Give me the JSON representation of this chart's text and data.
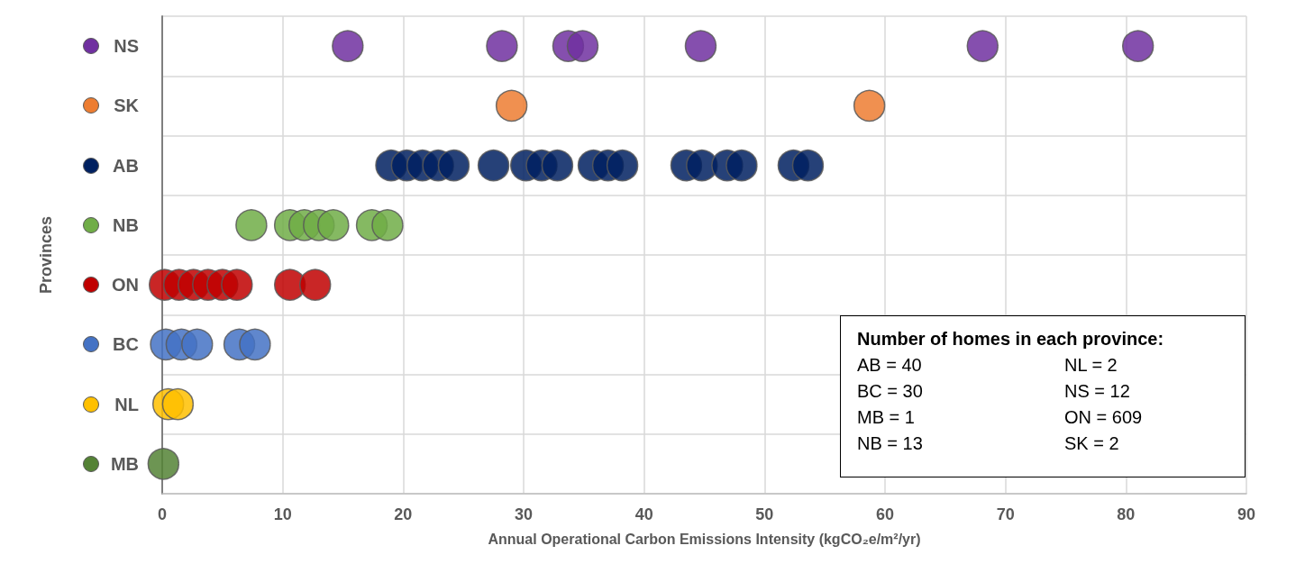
{
  "chart_data": {
    "type": "scatter",
    "orientation": "horizontal",
    "xlabel": "Annual Operational Carbon Emissions Intensity (kgCO₂e/m²/yr)",
    "ylabel": "Provinces",
    "categories": [
      "NS",
      "SK",
      "AB",
      "NB",
      "ON",
      "BC",
      "NL",
      "MB"
    ],
    "xlim": [
      0,
      90
    ],
    "xticks": [
      0,
      10,
      20,
      30,
      40,
      50,
      60,
      70,
      80,
      90
    ],
    "grid": true,
    "marker": "circle",
    "annotations": [
      "Number of homes in each province:",
      "AB = 40",
      "BC = 30",
      "MB = 1",
      "NB = 13",
      "NL = 2",
      "NS = 12",
      "ON = 609",
      "SK = 2"
    ],
    "series": [
      {
        "color": "#7030a0",
        "x": [
          "NS",
          "NS",
          "NS",
          "NS",
          "NS",
          "NS",
          "NS"
        ],
        "values": [
          15.4,
          28.2,
          33.7,
          34.9,
          44.7,
          68.1,
          81.0
        ]
      },
      {
        "color": "#ed7d31",
        "x": [
          "SK",
          "SK"
        ],
        "values": [
          29.0,
          58.7
        ]
      },
      {
        "color": "#002060",
        "x": [
          "AB",
          "AB",
          "AB",
          "AB",
          "AB",
          "AB",
          "AB",
          "AB",
          "AB",
          "AB",
          "AB",
          "AB",
          "AB",
          "AB",
          "AB",
          "AB",
          "AB",
          "AB"
        ],
        "values": [
          19.0,
          20.3,
          21.6,
          22.9,
          24.2,
          27.5,
          30.2,
          31.5,
          32.8,
          35.8,
          37.0,
          38.2,
          43.5,
          44.8,
          46.9,
          48.1,
          52.4,
          53.6
        ]
      },
      {
        "color": "#70ad47",
        "x": [
          "NB",
          "NB",
          "NB",
          "NB",
          "NB",
          "NB",
          "NB"
        ],
        "values": [
          7.4,
          10.6,
          11.8,
          13.0,
          14.2,
          17.4,
          18.7
        ]
      },
      {
        "color": "#c00000",
        "x": [
          "ON",
          "ON",
          "ON",
          "ON",
          "ON",
          "ON",
          "ON",
          "ON"
        ],
        "values": [
          0.2,
          1.4,
          2.6,
          3.8,
          5.0,
          6.2,
          10.6,
          12.7
        ]
      },
      {
        "color": "#4472c4",
        "x": [
          "BC",
          "BC",
          "BC",
          "BC",
          "BC"
        ],
        "values": [
          0.3,
          1.6,
          2.9,
          6.4,
          7.7
        ]
      },
      {
        "color": "#ffc000",
        "x": [
          "NL",
          "NL"
        ],
        "values": [
          0.5,
          1.3
        ]
      },
      {
        "color": "#548235",
        "x": [
          "MB"
        ],
        "values": [
          0.1
        ]
      }
    ]
  }
}
